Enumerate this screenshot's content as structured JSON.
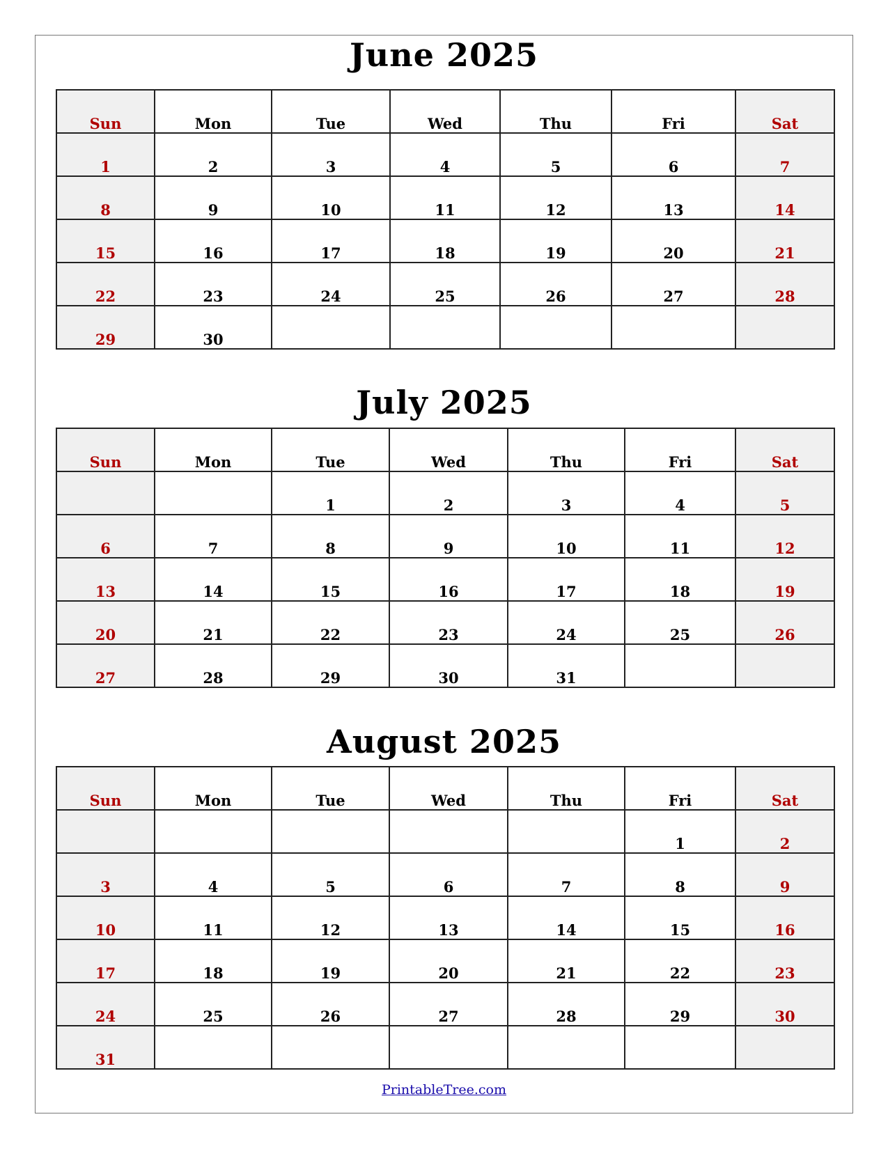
{
  "weekdays": [
    "Sun",
    "Mon",
    "Tue",
    "Wed",
    "Thu",
    "Fri",
    "Sat"
  ],
  "months": [
    {
      "title": "June 2025",
      "weeks": [
        [
          "1",
          "2",
          "3",
          "4",
          "5",
          "6",
          "7"
        ],
        [
          "8",
          "9",
          "10",
          "11",
          "12",
          "13",
          "14"
        ],
        [
          "15",
          "16",
          "17",
          "18",
          "19",
          "20",
          "21"
        ],
        [
          "22",
          "23",
          "24",
          "25",
          "26",
          "27",
          "28"
        ],
        [
          "29",
          "30",
          "",
          "",
          "",
          "",
          ""
        ]
      ]
    },
    {
      "title": "July 2025",
      "weeks": [
        [
          "",
          "",
          "1",
          "2",
          "3",
          "4",
          "5"
        ],
        [
          "6",
          "7",
          "8",
          "9",
          "10",
          "11",
          "12"
        ],
        [
          "13",
          "14",
          "15",
          "16",
          "17",
          "18",
          "19"
        ],
        [
          "20",
          "21",
          "22",
          "23",
          "24",
          "25",
          "26"
        ],
        [
          "27",
          "28",
          "29",
          "30",
          "31",
          "",
          ""
        ]
      ]
    },
    {
      "title": "August 2025",
      "weeks": [
        [
          "",
          "",
          "",
          "",
          "",
          "1",
          "2"
        ],
        [
          "3",
          "4",
          "5",
          "6",
          "7",
          "8",
          "9"
        ],
        [
          "10",
          "11",
          "12",
          "13",
          "14",
          "15",
          "16"
        ],
        [
          "17",
          "18",
          "19",
          "20",
          "21",
          "22",
          "23"
        ],
        [
          "24",
          "25",
          "26",
          "27",
          "28",
          "29",
          "30"
        ],
        [
          "31",
          "",
          "",
          "",
          "",
          "",
          ""
        ]
      ]
    }
  ],
  "footer": {
    "link": "PrintableTree.com"
  },
  "colors": {
    "weekend_text": "#b00000",
    "weekend_fill": "#f0f0f0",
    "link": "#1a0dab"
  }
}
